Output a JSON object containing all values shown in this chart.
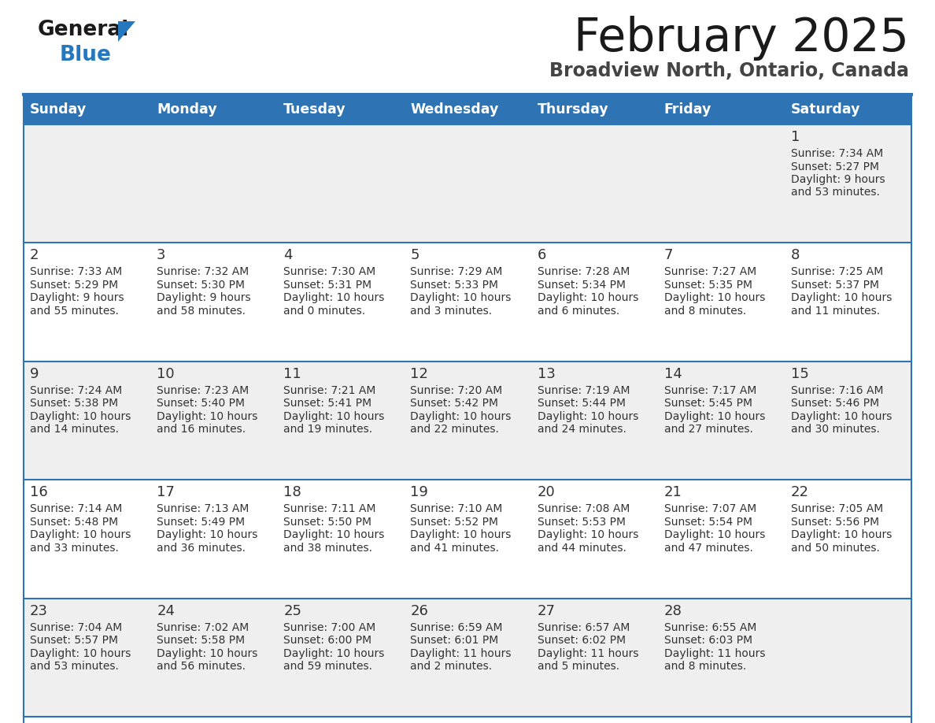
{
  "title": "February 2025",
  "subtitle": "Broadview North, Ontario, Canada",
  "days_of_week": [
    "Sunday",
    "Monday",
    "Tuesday",
    "Wednesday",
    "Thursday",
    "Friday",
    "Saturday"
  ],
  "header_bg": "#2E74B5",
  "header_text": "#FFFFFF",
  "cell_bg_white": "#FFFFFF",
  "cell_bg_gray": "#EFEFEF",
  "separator_color": "#2E74B5",
  "text_color": "#333333",
  "logo_general_color": "#1A1A1A",
  "logo_blue_color": "#2578BE",
  "weeks": [
    [
      null,
      null,
      null,
      null,
      null,
      null,
      1
    ],
    [
      2,
      3,
      4,
      5,
      6,
      7,
      8
    ],
    [
      9,
      10,
      11,
      12,
      13,
      14,
      15
    ],
    [
      16,
      17,
      18,
      19,
      20,
      21,
      22
    ],
    [
      23,
      24,
      25,
      26,
      27,
      28,
      null
    ]
  ],
  "day_data": {
    "1": {
      "sunrise": "7:34 AM",
      "sunset": "5:27 PM",
      "daylight_hours": 9,
      "daylight_minutes": 53
    },
    "2": {
      "sunrise": "7:33 AM",
      "sunset": "5:29 PM",
      "daylight_hours": 9,
      "daylight_minutes": 55
    },
    "3": {
      "sunrise": "7:32 AM",
      "sunset": "5:30 PM",
      "daylight_hours": 9,
      "daylight_minutes": 58
    },
    "4": {
      "sunrise": "7:30 AM",
      "sunset": "5:31 PM",
      "daylight_hours": 10,
      "daylight_minutes": 0
    },
    "5": {
      "sunrise": "7:29 AM",
      "sunset": "5:33 PM",
      "daylight_hours": 10,
      "daylight_minutes": 3
    },
    "6": {
      "sunrise": "7:28 AM",
      "sunset": "5:34 PM",
      "daylight_hours": 10,
      "daylight_minutes": 6
    },
    "7": {
      "sunrise": "7:27 AM",
      "sunset": "5:35 PM",
      "daylight_hours": 10,
      "daylight_minutes": 8
    },
    "8": {
      "sunrise": "7:25 AM",
      "sunset": "5:37 PM",
      "daylight_hours": 10,
      "daylight_minutes": 11
    },
    "9": {
      "sunrise": "7:24 AM",
      "sunset": "5:38 PM",
      "daylight_hours": 10,
      "daylight_minutes": 14
    },
    "10": {
      "sunrise": "7:23 AM",
      "sunset": "5:40 PM",
      "daylight_hours": 10,
      "daylight_minutes": 16
    },
    "11": {
      "sunrise": "7:21 AM",
      "sunset": "5:41 PM",
      "daylight_hours": 10,
      "daylight_minutes": 19
    },
    "12": {
      "sunrise": "7:20 AM",
      "sunset": "5:42 PM",
      "daylight_hours": 10,
      "daylight_minutes": 22
    },
    "13": {
      "sunrise": "7:19 AM",
      "sunset": "5:44 PM",
      "daylight_hours": 10,
      "daylight_minutes": 24
    },
    "14": {
      "sunrise": "7:17 AM",
      "sunset": "5:45 PM",
      "daylight_hours": 10,
      "daylight_minutes": 27
    },
    "15": {
      "sunrise": "7:16 AM",
      "sunset": "5:46 PM",
      "daylight_hours": 10,
      "daylight_minutes": 30
    },
    "16": {
      "sunrise": "7:14 AM",
      "sunset": "5:48 PM",
      "daylight_hours": 10,
      "daylight_minutes": 33
    },
    "17": {
      "sunrise": "7:13 AM",
      "sunset": "5:49 PM",
      "daylight_hours": 10,
      "daylight_minutes": 36
    },
    "18": {
      "sunrise": "7:11 AM",
      "sunset": "5:50 PM",
      "daylight_hours": 10,
      "daylight_minutes": 38
    },
    "19": {
      "sunrise": "7:10 AM",
      "sunset": "5:52 PM",
      "daylight_hours": 10,
      "daylight_minutes": 41
    },
    "20": {
      "sunrise": "7:08 AM",
      "sunset": "5:53 PM",
      "daylight_hours": 10,
      "daylight_minutes": 44
    },
    "21": {
      "sunrise": "7:07 AM",
      "sunset": "5:54 PM",
      "daylight_hours": 10,
      "daylight_minutes": 47
    },
    "22": {
      "sunrise": "7:05 AM",
      "sunset": "5:56 PM",
      "daylight_hours": 10,
      "daylight_minutes": 50
    },
    "23": {
      "sunrise": "7:04 AM",
      "sunset": "5:57 PM",
      "daylight_hours": 10,
      "daylight_minutes": 53
    },
    "24": {
      "sunrise": "7:02 AM",
      "sunset": "5:58 PM",
      "daylight_hours": 10,
      "daylight_minutes": 56
    },
    "25": {
      "sunrise": "7:00 AM",
      "sunset": "6:00 PM",
      "daylight_hours": 10,
      "daylight_minutes": 59
    },
    "26": {
      "sunrise": "6:59 AM",
      "sunset": "6:01 PM",
      "daylight_hours": 11,
      "daylight_minutes": 2
    },
    "27": {
      "sunrise": "6:57 AM",
      "sunset": "6:02 PM",
      "daylight_hours": 11,
      "daylight_minutes": 5
    },
    "28": {
      "sunrise": "6:55 AM",
      "sunset": "6:03 PM",
      "daylight_hours": 11,
      "daylight_minutes": 8
    }
  }
}
